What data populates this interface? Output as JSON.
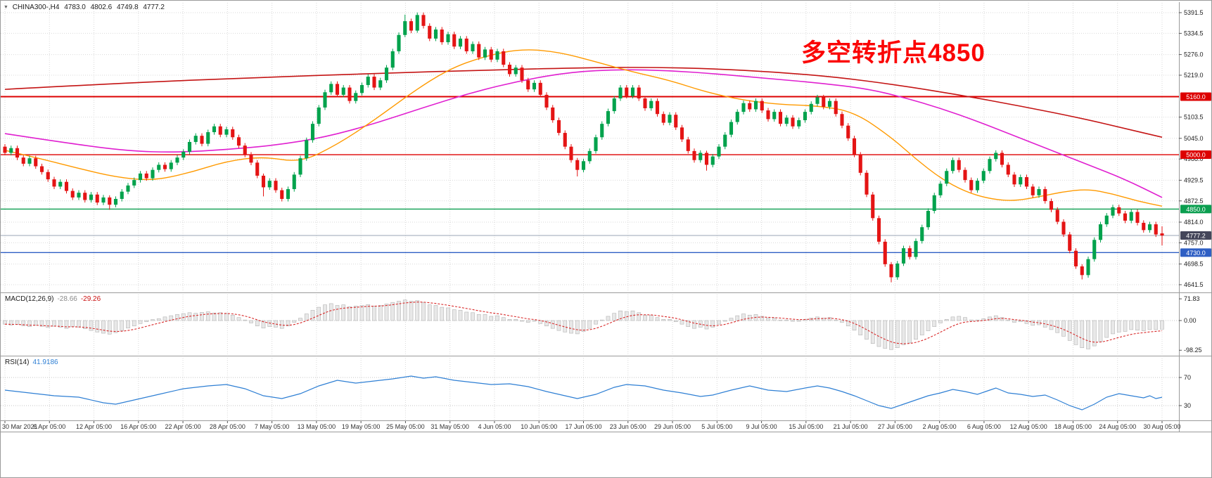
{
  "header": {
    "symbol": "CHINA300-,H4",
    "open": "4783.0",
    "high": "4802.6",
    "low": "4749.8",
    "close": "4777.2"
  },
  "annotation": {
    "text": "多空转折点4850",
    "color": "#fb0505"
  },
  "macd_label": {
    "name": "MACD(12,26,9)",
    "value": "-28.66",
    "signal": "-29.26"
  },
  "rsi_label": {
    "name": "RSI(14)",
    "value": "41.9186"
  },
  "colors": {
    "up": "#00a24c",
    "down": "#e41414",
    "grid": "#d9d9d9",
    "divider": "#9a9a9a",
    "hist_fill": "#e8e8e8",
    "hist_stroke": "#b3b3b3",
    "signal": "#d92b2b",
    "rsi_line": "#2e7fd4",
    "axis_text": "#1c1c1c",
    "time_text": "#333333",
    "ma_red": "#c41414",
    "ma_magenta": "#e020d0",
    "ma_orange": "#ff9a00"
  },
  "chart_data": {
    "type": "candlestick",
    "symbol": "CHINA300-",
    "timeframe": "H4",
    "title": "CHINA300-,H4 4783.0 4802.6 4749.8 4777.2",
    "price_axis_ticks": [
      "5391.5",
      "5334.5",
      "5276.0",
      "5219.0",
      "5103.5",
      "5045.0",
      "4988.0",
      "4929.5",
      "4872.5",
      "4814.0",
      "4757.0",
      "4698.5",
      "4641.5"
    ],
    "hlines": [
      {
        "price": 5160.0,
        "label": "5160.0",
        "color": "#dd0000",
        "width": 2,
        "badge_bg": "#dd0000"
      },
      {
        "price": 5000.0,
        "label": "5000.0",
        "color": "#dd0000",
        "width": 1.4,
        "badge_bg": "#dd0000"
      },
      {
        "price": 4850.0,
        "label": "4850.0",
        "color": "#0a9e4f",
        "width": 1.4,
        "badge_bg": "#0a9e4f"
      },
      {
        "price": 4777.2,
        "label": "4777.2",
        "color": "#9aa6b6",
        "width": 1,
        "badge_bg": "#44465a"
      },
      {
        "price": 4730.0,
        "label": "4730.0",
        "color": "#2f5fc4",
        "width": 1.4,
        "badge_bg": "#2f5fc4"
      }
    ],
    "candles": {
      "first_open": 5022,
      "default_wick": 7,
      "closes": [
        5005,
        5018,
        4992,
        4975,
        4990,
        4968,
        4952,
        4932,
        4912,
        4925,
        4900,
        4882,
        4895,
        4875,
        4890,
        4868,
        4882,
        4862,
        4878,
        4898,
        4915,
        4930,
        4948,
        4935,
        4958,
        4972,
        4960,
        4978,
        4992,
        5008,
        5035,
        5052,
        5030,
        5062,
        5078,
        5055,
        5070,
        5048,
        5025,
        5000,
        4978,
        4942,
        4910,
        4928,
        4902,
        4878,
        4905,
        4945,
        4990,
        5040,
        5085,
        5130,
        5172,
        5195,
        5165,
        5185,
        5148,
        5170,
        5192,
        5215,
        5185,
        5205,
        5240,
        5285,
        5330,
        5368,
        5342,
        5385,
        5355,
        5320,
        5345,
        5310,
        5332,
        5298,
        5320,
        5285,
        5305,
        5268,
        5290,
        5262,
        5285,
        5248,
        5222,
        5240,
        5205,
        5180,
        5198,
        5165,
        5130,
        5095,
        5060,
        5022,
        4985,
        4958,
        4982,
        5010,
        5048,
        5085,
        5120,
        5155,
        5185,
        5162,
        5185,
        5155,
        5128,
        5148,
        5112,
        5088,
        5110,
        5075,
        5042,
        5010,
        4985,
        5005,
        4972,
        4995,
        5022,
        5055,
        5090,
        5118,
        5142,
        5125,
        5148,
        5122,
        5098,
        5118,
        5085,
        5102,
        5078,
        5095,
        5118,
        5140,
        5158,
        5132,
        5148,
        5112,
        5080,
        5045,
        5000,
        4950,
        4890,
        4825,
        4760,
        4698,
        4662,
        4700,
        4742,
        4718,
        4762,
        4800,
        4845,
        4888,
        4920,
        4955,
        4985,
        4958,
        4930,
        4902,
        4928,
        4955,
        4988,
        5005,
        4972,
        4945,
        4918,
        4938,
        4912,
        4888,
        4905,
        4872,
        4848,
        4815,
        4780,
        4735,
        4692,
        4668,
        4712,
        4765,
        4808,
        4832,
        4855,
        4838,
        4818,
        4842,
        4812,
        4792,
        4808,
        4780,
        4777
      ],
      "wick_overrides": {
        "17": [
          6,
          14
        ],
        "42": [
          6,
          25
        ],
        "65": [
          18,
          6
        ],
        "67": [
          7,
          6
        ],
        "93": [
          6,
          18
        ],
        "114": [
          6,
          16
        ],
        "144": [
          6,
          14
        ],
        "175": [
          6,
          12
        ]
      },
      "last": [
        4783.0,
        4802.6,
        4749.8,
        4777.2
      ]
    },
    "moving_averages": [
      {
        "name": "ma-slow-red",
        "color": "#c41414",
        "width": 1.6,
        "points": [
          [
            0,
            5180
          ],
          [
            20,
            5198
          ],
          [
            40,
            5212
          ],
          [
            60,
            5224
          ],
          [
            80,
            5234
          ],
          [
            95,
            5240
          ],
          [
            105,
            5241
          ],
          [
            115,
            5237
          ],
          [
            125,
            5228
          ],
          [
            135,
            5214
          ],
          [
            145,
            5192
          ],
          [
            155,
            5165
          ],
          [
            165,
            5134
          ],
          [
            175,
            5100
          ],
          [
            182,
            5072
          ],
          [
            188,
            5048
          ]
        ]
      },
      {
        "name": "ma-mid-magenta",
        "color": "#e020d0",
        "width": 1.6,
        "points": [
          [
            0,
            5058
          ],
          [
            10,
            5032
          ],
          [
            20,
            5010
          ],
          [
            28,
            5006
          ],
          [
            36,
            5014
          ],
          [
            44,
            5026
          ],
          [
            52,
            5048
          ],
          [
            60,
            5085
          ],
          [
            68,
            5130
          ],
          [
            76,
            5172
          ],
          [
            84,
            5205
          ],
          [
            92,
            5228
          ],
          [
            100,
            5235
          ],
          [
            108,
            5232
          ],
          [
            116,
            5222
          ],
          [
            124,
            5210
          ],
          [
            132,
            5198
          ],
          [
            140,
            5182
          ],
          [
            146,
            5158
          ],
          [
            152,
            5128
          ],
          [
            158,
            5092
          ],
          [
            164,
            5052
          ],
          [
            170,
            5012
          ],
          [
            176,
            4972
          ],
          [
            182,
            4932
          ],
          [
            188,
            4882
          ]
        ]
      },
      {
        "name": "ma-fast-orange",
        "color": "#ff9a00",
        "width": 1.4,
        "points": [
          [
            0,
            5012
          ],
          [
            6,
            4988
          ],
          [
            12,
            4962
          ],
          [
            18,
            4938
          ],
          [
            24,
            4928
          ],
          [
            30,
            4950
          ],
          [
            36,
            4982
          ],
          [
            42,
            4995
          ],
          [
            48,
            4978
          ],
          [
            54,
            5028
          ],
          [
            60,
            5095
          ],
          [
            66,
            5170
          ],
          [
            72,
            5235
          ],
          [
            78,
            5272
          ],
          [
            84,
            5292
          ],
          [
            90,
            5283
          ],
          [
            96,
            5256
          ],
          [
            102,
            5228
          ],
          [
            108,
            5205
          ],
          [
            114,
            5172
          ],
          [
            120,
            5150
          ],
          [
            126,
            5138
          ],
          [
            132,
            5135
          ],
          [
            138,
            5118
          ],
          [
            144,
            5048
          ],
          [
            148,
            4988
          ],
          [
            152,
            4935
          ],
          [
            156,
            4898
          ],
          [
            160,
            4878
          ],
          [
            164,
            4872
          ],
          [
            168,
            4884
          ],
          [
            172,
            4898
          ],
          [
            176,
            4905
          ],
          [
            180,
            4892
          ],
          [
            184,
            4872
          ],
          [
            188,
            4858
          ]
        ]
      }
    ],
    "macd": {
      "label": "MACD(12,26,9)",
      "value": -28.66,
      "signal": -29.26,
      "axis_ticks": [
        "71.83",
        "0.00",
        "-98.25"
      ],
      "histogram": [
        -12,
        -15,
        -13,
        -17,
        -20,
        -16,
        -19,
        -23,
        -19,
        -22,
        -26,
        -20,
        -22,
        -27,
        -33,
        -38,
        -42,
        -45,
        -40,
        -33,
        -25,
        -18,
        -10,
        -4,
        3,
        6,
        12,
        16,
        20,
        23,
        26,
        24,
        27,
        29,
        25,
        26,
        24,
        18,
        10,
        2,
        -8,
        -18,
        -25,
        -20,
        -22,
        -26,
        -18,
        -6,
        8,
        22,
        34,
        44,
        52,
        56,
        50,
        52,
        46,
        48,
        50,
        53,
        48,
        50,
        55,
        60,
        64,
        68,
        64,
        66,
        60,
        52,
        50,
        44,
        42,
        36,
        34,
        28,
        26,
        20,
        20,
        14,
        16,
        10,
        4,
        4,
        -2,
        -6,
        -2,
        -10,
        -18,
        -26,
        -33,
        -38,
        -42,
        -44,
        -36,
        -26,
        -12,
        2,
        14,
        24,
        32,
        30,
        32,
        26,
        18,
        18,
        10,
        4,
        4,
        -4,
        -12,
        -20,
        -26,
        -22,
        -28,
        -22,
        -12,
        -2,
        8,
        16,
        22,
        18,
        20,
        14,
        8,
        8,
        2,
        2,
        -2,
        0,
        4,
        8,
        12,
        8,
        10,
        2,
        -6,
        -18,
        -32,
        -48,
        -62,
        -76,
        -86,
        -92,
        -96,
        -90,
        -80,
        -74,
        -62,
        -48,
        -34,
        -20,
        -8,
        4,
        12,
        14,
        10,
        2,
        2,
        6,
        12,
        16,
        10,
        2,
        -6,
        -4,
        -10,
        -16,
        -14,
        -22,
        -30,
        -40,
        -52,
        -66,
        -80,
        -90,
        -94,
        -84,
        -70,
        -56,
        -44,
        -38,
        -36,
        -30,
        -32,
        -34,
        -30,
        -30,
        -28.66
      ]
    },
    "rsi": {
      "label": "RSI(14)",
      "value": 41.9186,
      "levels": [
        70,
        30
      ],
      "points": [
        [
          0,
          52
        ],
        [
          4,
          48
        ],
        [
          8,
          44
        ],
        [
          12,
          42
        ],
        [
          16,
          34
        ],
        [
          18,
          32
        ],
        [
          21,
          38
        ],
        [
          25,
          46
        ],
        [
          29,
          54
        ],
        [
          33,
          58
        ],
        [
          36,
          60
        ],
        [
          39,
          54
        ],
        [
          42,
          44
        ],
        [
          45,
          40
        ],
        [
          48,
          47
        ],
        [
          51,
          58
        ],
        [
          54,
          66
        ],
        [
          57,
          62
        ],
        [
          60,
          65
        ],
        [
          63,
          68
        ],
        [
          66,
          72
        ],
        [
          68,
          69
        ],
        [
          70,
          71
        ],
        [
          73,
          66
        ],
        [
          76,
          63
        ],
        [
          79,
          60
        ],
        [
          82,
          61
        ],
        [
          85,
          57
        ],
        [
          88,
          50
        ],
        [
          91,
          44
        ],
        [
          93,
          40
        ],
        [
          96,
          46
        ],
        [
          99,
          56
        ],
        [
          101,
          60
        ],
        [
          104,
          58
        ],
        [
          107,
          52
        ],
        [
          110,
          48
        ],
        [
          113,
          43
        ],
        [
          115,
          45
        ],
        [
          118,
          52
        ],
        [
          121,
          58
        ],
        [
          124,
          52
        ],
        [
          127,
          50
        ],
        [
          130,
          55
        ],
        [
          132,
          58
        ],
        [
          134,
          55
        ],
        [
          136,
          50
        ],
        [
          138,
          44
        ],
        [
          140,
          37
        ],
        [
          142,
          30
        ],
        [
          144,
          26
        ],
        [
          146,
          32
        ],
        [
          148,
          38
        ],
        [
          150,
          44
        ],
        [
          152,
          48
        ],
        [
          154,
          53
        ],
        [
          156,
          50
        ],
        [
          158,
          46
        ],
        [
          160,
          52
        ],
        [
          161,
          55
        ],
        [
          163,
          48
        ],
        [
          165,
          46
        ],
        [
          167,
          43
        ],
        [
          169,
          45
        ],
        [
          171,
          38
        ],
        [
          173,
          30
        ],
        [
          175,
          24
        ],
        [
          177,
          32
        ],
        [
          179,
          42
        ],
        [
          181,
          47
        ],
        [
          183,
          44
        ],
        [
          185,
          41
        ],
        [
          186,
          44
        ],
        [
          187,
          40
        ],
        [
          188,
          41.9
        ]
      ]
    },
    "time_labels": [
      "30 Mar 2021",
      "6 Apr 05:00",
      "12 Apr 05:00",
      "16 Apr 05:00",
      "22 Apr 05:00",
      "28 Apr 05:00",
      "7 May 05:00",
      "13 May 05:00",
      "19 May 05:00",
      "25 May 05:00",
      "31 May 05:00",
      "4 Jun 05:00",
      "10 Jun 05:00",
      "17 Jun 05:00",
      "23 Jun 05:00",
      "29 Jun 05:00",
      "5 Jul 05:00",
      "9 Jul 05:00",
      "15 Jul 05:00",
      "21 Jul 05:00",
      "27 Jul 05:00",
      "2 Aug 05:00",
      "6 Aug 05:00",
      "12 Aug 05:00",
      "18 Aug 05:00",
      "24 Aug 05:00",
      "30 Aug 05:00"
    ]
  }
}
